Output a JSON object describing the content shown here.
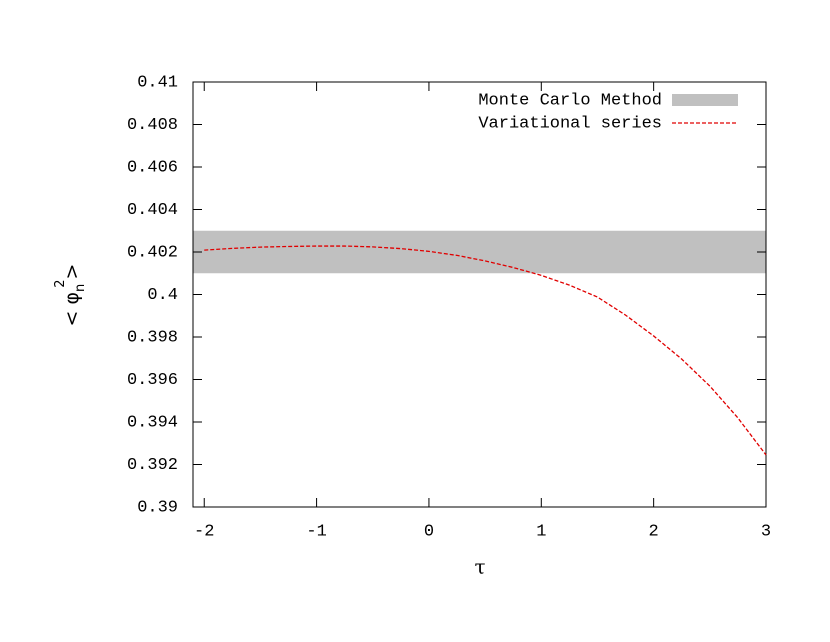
{
  "chart_data": {
    "type": "line",
    "xlabel": "τ",
    "ylabel": {
      "prefix": "< φ",
      "subscript": "n",
      "superscript": "2",
      "suffix": ">"
    },
    "xlim": [
      -2.1,
      3
    ],
    "xticks": [
      -2,
      -1,
      0,
      1,
      2,
      3
    ],
    "ylim": [
      0.39,
      0.41
    ],
    "yticks": [
      0.39,
      0.392,
      0.394,
      0.396,
      0.398,
      0.4,
      0.402,
      0.404,
      0.406,
      0.408,
      0.41
    ],
    "legend": "top-right",
    "series": [
      {
        "name": "Monte Carlo Method",
        "type": "band",
        "color": "#c0c0c0",
        "values": [
          0.401,
          0.403
        ]
      },
      {
        "name": "Variational series",
        "type": "line",
        "color": "#e00000",
        "x": [
          -2,
          -1.75,
          -1.5,
          -1.25,
          -1,
          -0.75,
          -0.5,
          -0.25,
          0,
          0.25,
          0.5,
          0.75,
          1,
          1.25,
          1.5,
          1.75,
          2,
          2.25,
          2.5,
          2.75,
          3
        ],
        "values": [
          0.40209,
          0.40217,
          0.40223,
          0.40226,
          0.40228,
          0.40228,
          0.40224,
          0.40216,
          0.40203,
          0.40184,
          0.40158,
          0.40127,
          0.4009,
          0.40044,
          0.39988,
          0.39903,
          0.39805,
          0.39696,
          0.39569,
          0.39419,
          0.39245
        ]
      }
    ]
  }
}
